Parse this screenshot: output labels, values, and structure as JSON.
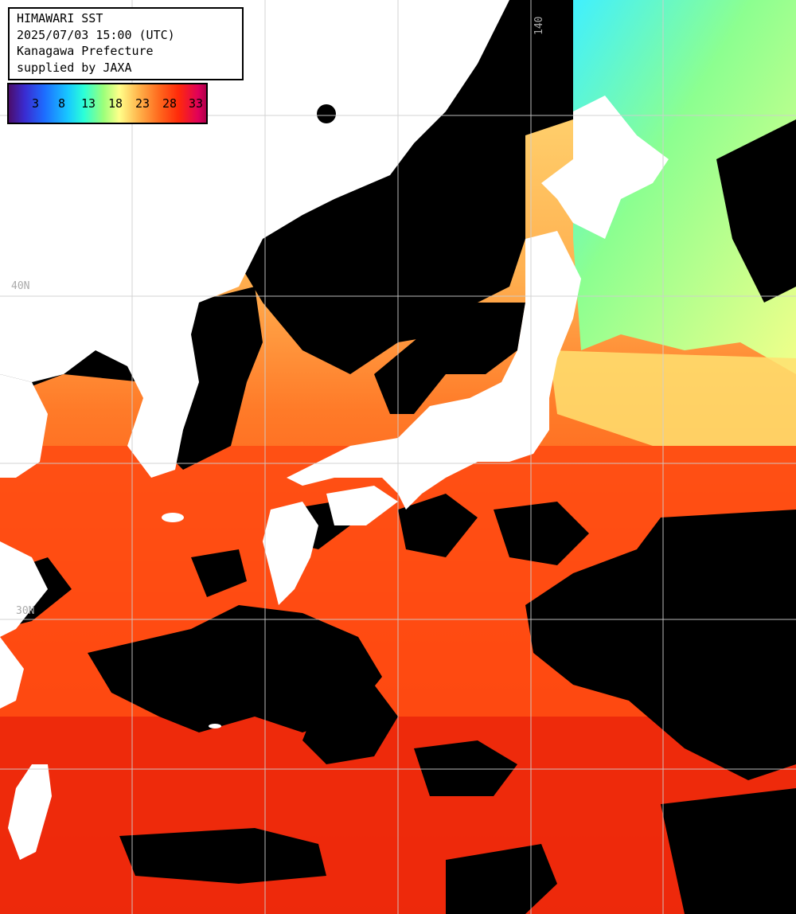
{
  "info": {
    "line1": "HIMAWARI SST",
    "line2": "2025/07/03 15:00 (UTC)",
    "line3": "Kanagawa Prefecture",
    "line4": "supplied by JAXA"
  },
  "legend": {
    "ticks": [
      "3",
      "8",
      "13",
      "18",
      "23",
      "28",
      "33"
    ]
  },
  "grid": {
    "lat_label_40": "40N",
    "lat_label_30": "30N",
    "lon_label_140": "140"
  },
  "colors": {
    "cloud": "#000000",
    "land": "#ffffff",
    "warm_sea": "#ff4a12",
    "hot_sea": "#e8200a",
    "mid_sea": "#ff8a30",
    "cool_sea": "#ffe680",
    "cold_sea": "#7affa0",
    "colder_sea": "#30f0e0"
  }
}
